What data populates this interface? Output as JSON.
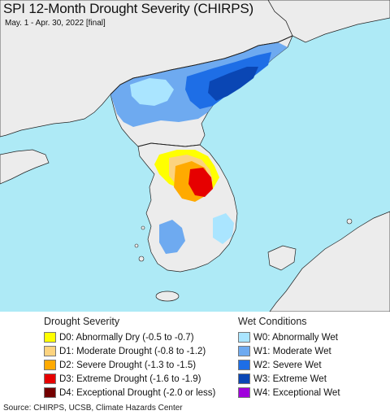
{
  "title": "SPI 12-Month Drought Severity (CHIRPS)",
  "subtitle": "May. 1 - Apr. 30, 2022 [final]",
  "colors": {
    "water": "#aeeaf6",
    "land": "#ececec",
    "border": "#222222"
  },
  "legend": {
    "drought": {
      "heading": "Drought Severity",
      "items": [
        {
          "label": "D0: Abnormally Dry (-0.5 to -0.7)",
          "color": "#ffff00"
        },
        {
          "label": "D1: Moderate Drought (-0.8 to -1.2)",
          "color": "#fcd37f"
        },
        {
          "label": "D2: Severe Drought (-1.3 to -1.5)",
          "color": "#ffaa00"
        },
        {
          "label": "D3: Extreme Drought (-1.6 to -1.9)",
          "color": "#e60000"
        },
        {
          "label": "D4: Exceptional Drought (-2.0 or less)",
          "color": "#730000"
        }
      ]
    },
    "wet": {
      "heading": "Wet Conditions",
      "items": [
        {
          "label": "W0: Abnormally Wet",
          "color": "#aae5ff"
        },
        {
          "label": "W1: Moderate Wet",
          "color": "#6eaaf0"
        },
        {
          "label": "W2: Severe Wet",
          "color": "#1e6ee6"
        },
        {
          "label": "W3: Extreme Wet",
          "color": "#0a46b4"
        },
        {
          "label": "W4: Exceptional Wet",
          "color": "#a000dc"
        }
      ]
    }
  },
  "source": "Source: CHIRPS, UCSB, Climate Hazards Center"
}
